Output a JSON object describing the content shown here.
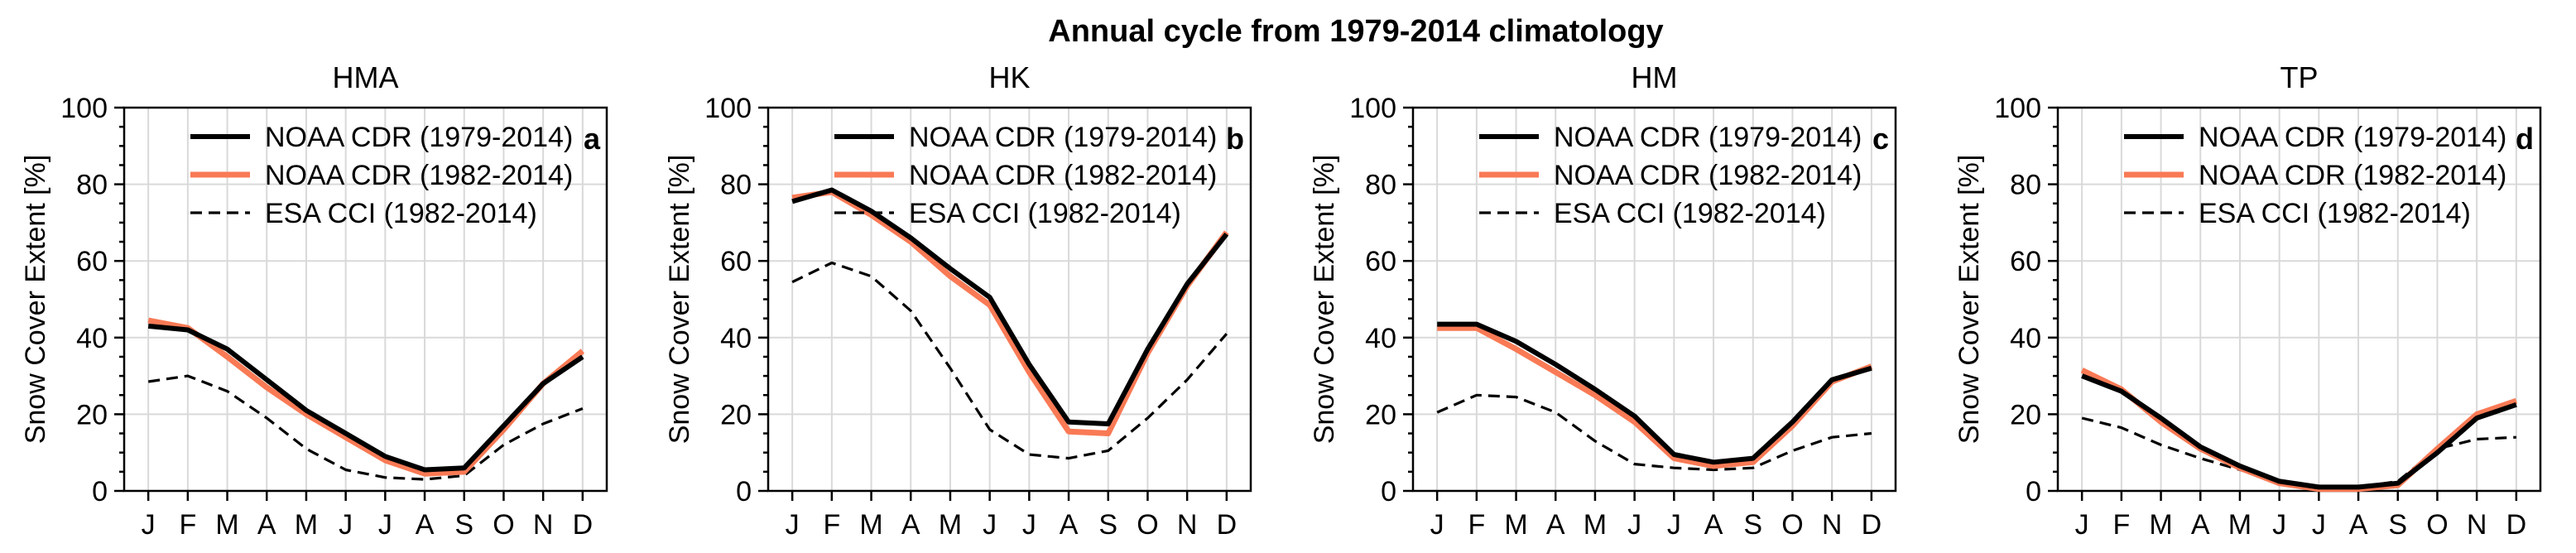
{
  "figure": {
    "title": "Annual cycle from 1979-2014 climatology"
  },
  "colors": {
    "noaa_full": "#000000",
    "noaa_short": "#f97a55",
    "esa": "#000000"
  },
  "chart_data": [
    {
      "type": "line",
      "title": "HMA",
      "panel_tag": "a",
      "ylabel": "Snow Cover Extent [%]",
      "xlabel": "",
      "ylim": [
        0,
        100
      ],
      "yticks": [
        0,
        20,
        40,
        60,
        80,
        100
      ],
      "categories": [
        "J",
        "F",
        "M",
        "A",
        "M",
        "J",
        "J",
        "A",
        "S",
        "O",
        "N",
        "D"
      ],
      "legend_position": "top-right",
      "series": [
        {
          "name": "NOAA CDR (1979-2014)",
          "style": "solid-thick-black",
          "values": [
            43,
            42,
            37,
            29,
            21,
            15,
            9,
            5.5,
            6,
            17,
            28,
            35
          ]
        },
        {
          "name": "NOAA CDR (1982-2014)",
          "style": "solid-thick-orange",
          "values": [
            44.5,
            42.5,
            35,
            27,
            20,
            14,
            8,
            4.5,
            5,
            16,
            28,
            36.5
          ]
        },
        {
          "name": "ESA CCI (1982-2014)",
          "style": "dashed-black",
          "values": [
            28.5,
            30,
            26,
            19,
            11,
            5.5,
            3.5,
            3,
            4,
            12,
            17.5,
            21.5
          ]
        }
      ]
    },
    {
      "type": "line",
      "title": "HK",
      "panel_tag": "b",
      "ylabel": "Snow Cover Extent [%]",
      "xlabel": "",
      "ylim": [
        0,
        100
      ],
      "yticks": [
        0,
        20,
        40,
        60,
        80,
        100
      ],
      "categories": [
        "J",
        "F",
        "M",
        "A",
        "M",
        "J",
        "J",
        "A",
        "S",
        "O",
        "N",
        "D"
      ],
      "legend_position": "top-right",
      "series": [
        {
          "name": "NOAA CDR (1979-2014)",
          "style": "solid-thick-black",
          "values": [
            75.5,
            78.5,
            73,
            66,
            58,
            50.5,
            33,
            18,
            17.5,
            37,
            54,
            67
          ]
        },
        {
          "name": "NOAA CDR (1982-2014)",
          "style": "solid-thick-orange",
          "values": [
            76.5,
            78,
            72,
            65,
            56,
            48.5,
            31,
            15.5,
            15,
            36,
            53.5,
            67.5
          ]
        },
        {
          "name": "ESA CCI (1982-2014)",
          "style": "dashed-black",
          "values": [
            54.5,
            59.5,
            56,
            47,
            32,
            16,
            9.5,
            8.5,
            10.5,
            19,
            29,
            41
          ]
        }
      ]
    },
    {
      "type": "line",
      "title": "HM",
      "panel_tag": "c",
      "ylabel": "Snow Cover Extent [%]",
      "xlabel": "",
      "ylim": [
        0,
        100
      ],
      "yticks": [
        0,
        20,
        40,
        60,
        80,
        100
      ],
      "categories": [
        "J",
        "F",
        "M",
        "A",
        "M",
        "J",
        "J",
        "A",
        "S",
        "O",
        "N",
        "D"
      ],
      "legend_position": "top-right",
      "series": [
        {
          "name": "NOAA CDR (1979-2014)",
          "style": "solid-thick-black",
          "values": [
            43.5,
            43.5,
            39,
            33,
            26.5,
            19.5,
            9.5,
            7.5,
            8.5,
            18,
            29,
            32
          ]
        },
        {
          "name": "NOAA CDR (1982-2014)",
          "style": "solid-thick-orange",
          "values": [
            42.5,
            42.5,
            37,
            31,
            25,
            18,
            8.5,
            6.5,
            7.5,
            17,
            28.5,
            32.5
          ]
        },
        {
          "name": "ESA CCI (1982-2014)",
          "style": "dashed-black",
          "values": [
            20.5,
            25,
            24.5,
            20.5,
            13,
            7,
            6,
            5.5,
            6,
            10.5,
            14,
            15
          ]
        }
      ]
    },
    {
      "type": "line",
      "title": "TP",
      "panel_tag": "d",
      "ylabel": "Snow Cover Extent [%]",
      "xlabel": "",
      "ylim": [
        0,
        100
      ],
      "yticks": [
        0,
        20,
        40,
        60,
        80,
        100
      ],
      "categories": [
        "J",
        "F",
        "M",
        "A",
        "M",
        "J",
        "J",
        "A",
        "S",
        "O",
        "N",
        "D"
      ],
      "legend_position": "top-right",
      "series": [
        {
          "name": "NOAA CDR (1979-2014)",
          "style": "solid-thick-black",
          "values": [
            30,
            26,
            19,
            11.5,
            6.5,
            2.5,
            1,
            1,
            2,
            10,
            19,
            22.5
          ]
        },
        {
          "name": "NOAA CDR (1982-2014)",
          "style": "solid-thick-orange",
          "values": [
            31.5,
            26.5,
            18,
            11,
            6,
            2,
            0.5,
            0.5,
            1.5,
            11,
            20,
            23.5
          ]
        },
        {
          "name": "ESA CCI (1982-2014)",
          "style": "dashed-black",
          "values": [
            19,
            16.5,
            12,
            8.5,
            5.5,
            2.5,
            1,
            1,
            2.5,
            11,
            13.5,
            14
          ]
        }
      ]
    }
  ]
}
